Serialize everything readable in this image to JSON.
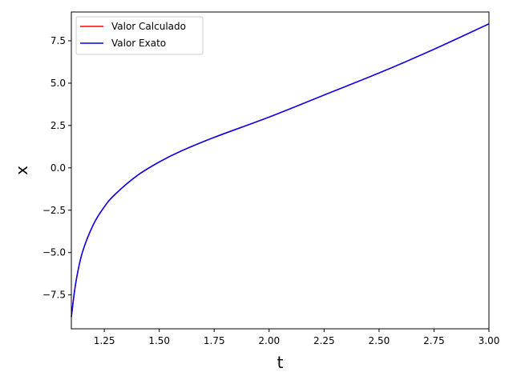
{
  "chart_data": {
    "type": "line",
    "xlabel": "t",
    "ylabel": "x",
    "xlim": [
      1.1,
      3.0
    ],
    "ylim": [
      -9.5,
      9.2
    ],
    "grid": false,
    "legend_position": "top-left",
    "xticks": [
      "1.25",
      "1.50",
      "1.75",
      "2.00",
      "2.25",
      "2.50",
      "2.75",
      "3.00"
    ],
    "xtick_values": [
      1.25,
      1.5,
      1.75,
      2.0,
      2.25,
      2.5,
      2.75,
      3.0
    ],
    "yticks": [
      "7.5",
      "5.0",
      "2.5",
      "0.0",
      "−2.5",
      "−5.0",
      "−7.5"
    ],
    "ytick_values": [
      7.5,
      5.0,
      2.5,
      0.0,
      -2.5,
      -5.0,
      -7.5
    ],
    "x": [
      1.1,
      1.12,
      1.15,
      1.2,
      1.25,
      1.3,
      1.4,
      1.5,
      1.6,
      1.75,
      2.0,
      2.25,
      2.5,
      2.75,
      3.0
    ],
    "series": [
      {
        "name": "Valor Calculado",
        "color": "#ff0000",
        "values": [
          -8.8,
          -6.8,
          -5.0,
          -3.35,
          -2.3,
          -1.55,
          -0.45,
          0.35,
          1.0,
          1.8,
          3.0,
          4.3,
          5.6,
          7.0,
          8.5
        ]
      },
      {
        "name": "Valor Exato",
        "color": "#0000ff",
        "values": [
          -8.8,
          -6.8,
          -5.0,
          -3.35,
          -2.3,
          -1.55,
          -0.45,
          0.35,
          1.0,
          1.8,
          3.0,
          4.3,
          5.6,
          7.0,
          8.5
        ]
      }
    ]
  }
}
